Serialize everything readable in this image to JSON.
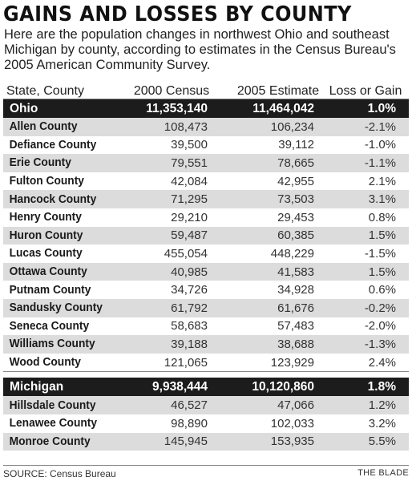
{
  "title": "GAINS AND LOSSES BY COUNTY",
  "intro": "Here are the population changes in northwest Ohio and southeast Michigan by county, according to estimates in the Census Bureau's 2005 American Community Survey.",
  "columns": [
    "State, County",
    "2000 Census",
    "2005 Estimate",
    "Loss or Gain"
  ],
  "ohio": {
    "name": "Ohio",
    "census2000": "11,353,140",
    "estimate2005": "11,464,042",
    "change": "1.0%",
    "counties": [
      {
        "name": "Allen County",
        "census2000": "108,473",
        "estimate2005": "106,234",
        "change": "-2.1%"
      },
      {
        "name": "Defiance County",
        "census2000": "39,500",
        "estimate2005": "39,112",
        "change": "-1.0%"
      },
      {
        "name": "Erie County",
        "census2000": "79,551",
        "estimate2005": "78,665",
        "change": "-1.1%"
      },
      {
        "name": "Fulton County",
        "census2000": "42,084",
        "estimate2005": "42,955",
        "change": "2.1%"
      },
      {
        "name": "Hancock County",
        "census2000": "71,295",
        "estimate2005": "73,503",
        "change": "3.1%"
      },
      {
        "name": "Henry County",
        "census2000": "29,210",
        "estimate2005": "29,453",
        "change": "0.8%"
      },
      {
        "name": "Huron County",
        "census2000": "59,487",
        "estimate2005": "60,385",
        "change": "1.5%"
      },
      {
        "name": "Lucas County",
        "census2000": "455,054",
        "estimate2005": "448,229",
        "change": "-1.5%"
      },
      {
        "name": "Ottawa County",
        "census2000": "40,985",
        "estimate2005": "41,583",
        "change": "1.5%"
      },
      {
        "name": "Putnam County",
        "census2000": "34,726",
        "estimate2005": "34,928",
        "change": "0.6%"
      },
      {
        "name": "Sandusky County",
        "census2000": "61,792",
        "estimate2005": "61,676",
        "change": "-0.2%"
      },
      {
        "name": "Seneca County",
        "census2000": "58,683",
        "estimate2005": "57,483",
        "change": "-2.0%"
      },
      {
        "name": "Williams County",
        "census2000": "39,188",
        "estimate2005": "38,688",
        "change": "-1.3%"
      },
      {
        "name": "Wood County",
        "census2000": "121,065",
        "estimate2005": "123,929",
        "change": "2.4%"
      }
    ]
  },
  "michigan": {
    "name": "Michigan",
    "census2000": "9,938,444",
    "estimate2005": "10,120,860",
    "change": "1.8%",
    "counties": [
      {
        "name": "Hillsdale County",
        "census2000": "46,527",
        "estimate2005": "47,066",
        "change": "1.2%"
      },
      {
        "name": "Lenawee County",
        "census2000": "98,890",
        "estimate2005": "102,033",
        "change": "3.2%"
      },
      {
        "name": "Monroe County",
        "census2000": "145,945",
        "estimate2005": "153,935",
        "change": "5.5%"
      }
    ]
  },
  "footer": {
    "source": "SOURCE: Census Bureau",
    "credit": "THE BLADE"
  },
  "colors": {
    "state_row_bg": "#1c1c1c",
    "shaded_row_bg": "#dcdcdc"
  }
}
